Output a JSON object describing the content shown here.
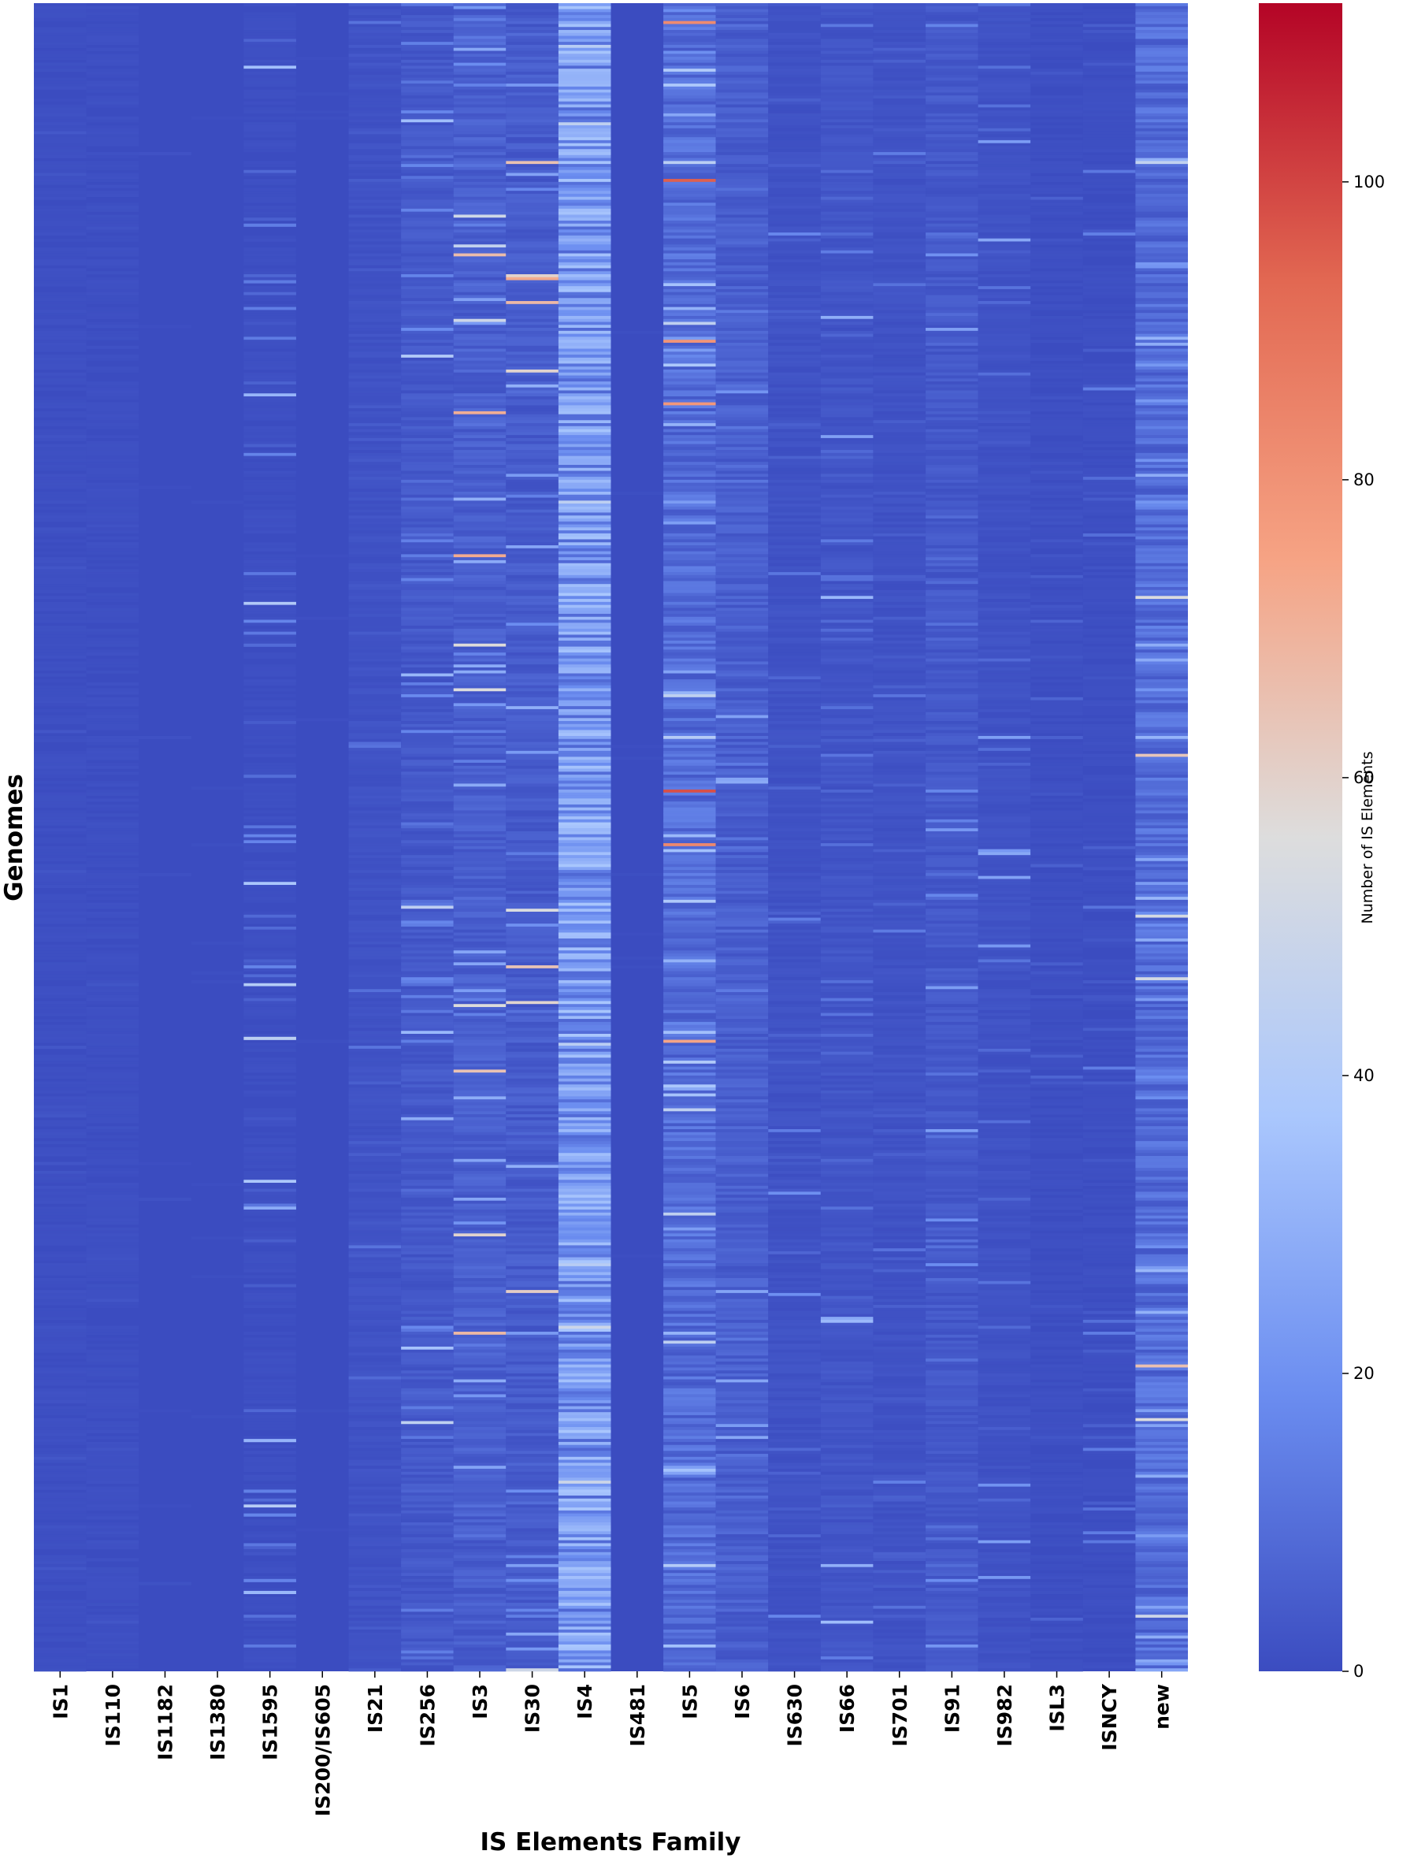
{
  "chart_data": {
    "type": "heatmap",
    "xlabel": "IS Elements Family",
    "ylabel": "Genomes",
    "categories": [
      "IS1",
      "IS110",
      "IS1182",
      "IS1380",
      "IS1595",
      "IS200/IS605",
      "IS21",
      "IS256",
      "IS3",
      "IS30",
      "IS4",
      "IS481",
      "IS5",
      "IS6",
      "IS630",
      "IS66",
      "IS701",
      "IS91",
      "IS982",
      "ISL3",
      "ISNCY",
      "new"
    ],
    "colorbar": {
      "label": "Number of IS Elements",
      "vmin": 0,
      "vmax": 112,
      "ticks": [
        0,
        20,
        40,
        60,
        80,
        100
      ],
      "colormap": "coolwarm",
      "color_stops": [
        "#3b4cc0",
        "#6b8df0",
        "#aac7fd",
        "#dddddd",
        "#f6a384",
        "#e26852",
        "#b40426"
      ]
    },
    "n_genomes_approx": 560,
    "column_summary": [
      {
        "family": "IS1",
        "typical_count": 1,
        "max_count": 4
      },
      {
        "family": "IS110",
        "typical_count": 1,
        "max_count": 3
      },
      {
        "family": "IS1182",
        "typical_count": 0,
        "max_count": 2
      },
      {
        "family": "IS1380",
        "typical_count": 0,
        "max_count": 1
      },
      {
        "family": "IS1595",
        "typical_count": 1,
        "max_count": 45
      },
      {
        "family": "IS200/IS605",
        "typical_count": 0,
        "max_count": 1
      },
      {
        "family": "IS21",
        "typical_count": 2,
        "max_count": 12
      },
      {
        "family": "IS256",
        "typical_count": 4,
        "max_count": 45
      },
      {
        "family": "IS3",
        "typical_count": 6,
        "max_count": 75
      },
      {
        "family": "IS30",
        "typical_count": 5,
        "max_count": 80
      },
      {
        "family": "IS4",
        "typical_count": 25,
        "max_count": 50
      },
      {
        "family": "IS481",
        "typical_count": 0,
        "max_count": 1
      },
      {
        "family": "IS5",
        "typical_count": 10,
        "max_count": 112
      },
      {
        "family": "IS6",
        "typical_count": 6,
        "max_count": 30
      },
      {
        "family": "IS630",
        "typical_count": 2,
        "max_count": 20
      },
      {
        "family": "IS66",
        "typical_count": 3,
        "max_count": 35
      },
      {
        "family": "IS701",
        "typical_count": 2,
        "max_count": 15
      },
      {
        "family": "IS91",
        "typical_count": 4,
        "max_count": 25
      },
      {
        "family": "IS982",
        "typical_count": 2,
        "max_count": 30
      },
      {
        "family": "ISL3",
        "typical_count": 1,
        "max_count": 8
      },
      {
        "family": "ISNCY",
        "typical_count": 1,
        "max_count": 15
      },
      {
        "family": "new",
        "typical_count": 10,
        "max_count": 75
      }
    ]
  }
}
